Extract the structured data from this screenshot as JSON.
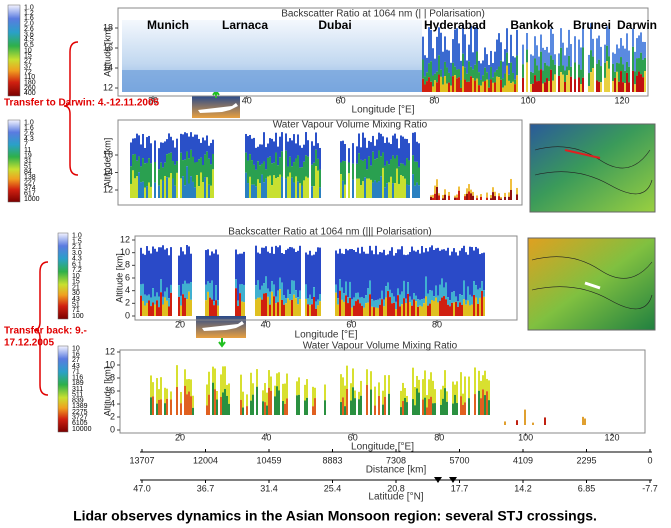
{
  "cities": [
    "Munich",
    "Larnaca",
    "Dubai",
    "Hyderabad",
    "Bankok",
    "Brunei",
    "Darwin"
  ],
  "transfer_out": "Transfer to Darwin: 4.-12.11.2005",
  "transfer_back": [
    "Transfer back: 9.-",
    "17.12.2005"
  ],
  "panels": [
    {
      "title": "Backscatter Ratio at 1064 nm   (| | Polarisation)",
      "colorbar": [
        "1.0",
        "1.2",
        "1.6",
        "2.0",
        "2.6",
        "3.6",
        "4.5",
        "6.5",
        10,
        15,
        27,
        37,
        72,
        110,
        180,
        260,
        400
      ],
      "y_label": "Altitude [km]",
      "yticks": [
        12,
        14,
        16,
        18
      ],
      "x_label": "Longitude [°E]",
      "xticks": [
        20,
        40,
        60,
        80,
        100,
        120
      ]
    },
    {
      "title": "Water Vapour Volume Mixing Ratio",
      "colorbar": [
        "1.0",
        "1.6",
        "2.6",
        "4.3",
        7,
        11,
        19,
        31,
        51,
        84,
        138,
        227,
        374,
        617,
        1000
      ],
      "y_label": "Altitude [km]",
      "yticks": [
        12,
        14,
        16
      ]
    },
    {
      "title": "Backscatter Ratio at 1064 nm   (||| Polarisation)",
      "colorbar": [
        "1.0",
        "1.5",
        "2.1",
        "3.0",
        "4.3",
        "6.1",
        "7.2",
        10,
        15,
        21,
        30,
        43,
        51,
        71,
        100
      ],
      "y_label": "Altitude [km]",
      "yticks": [
        0,
        2,
        4,
        6,
        8,
        10,
        12
      ],
      "x_label": "Longitude [°E]",
      "xticks": [
        20,
        40,
        60,
        80
      ]
    },
    {
      "title": "Water Vapour Volume Mixing Ratio",
      "colorbar": [
        10,
        16,
        27,
        43,
        71,
        116,
        189,
        311,
        511,
        839,
        1389,
        2275,
        3727,
        6105,
        10000
      ],
      "y_label": "Altitude [km]",
      "yticks": [
        0,
        2,
        4,
        6,
        8,
        10,
        12
      ],
      "x_label": "Longitude [°E]",
      "xticks": [
        20,
        40,
        60,
        80,
        100,
        120
      ]
    }
  ],
  "distance_axis": {
    "label": "Distance [km]",
    "ticks": [
      13707,
      12004,
      10459,
      8883,
      7308,
      5700,
      4109,
      2295,
      0
    ]
  },
  "latitude_axis": {
    "label": "Latitude [°N]",
    "ticks": [
      "47.0",
      36.7,
      31.4,
      25.4,
      20.8,
      17.7,
      14.2,
      6.85,
      -7.7
    ]
  },
  "caption": "Lidar observes dynamics in the Asian Monsoon region: several STJ crossings."
}
